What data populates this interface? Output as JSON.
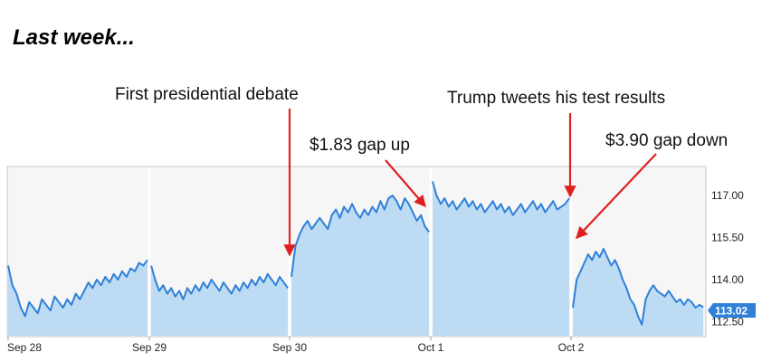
{
  "page": {
    "heading": "Last week..."
  },
  "annotations": {
    "debate": "First presidential debate",
    "gap_up": "$1.83 gap up",
    "tweet": "Trump tweets his test results",
    "gap_down": "$3.90 gap down"
  },
  "chart_data": {
    "type": "area",
    "y_ticks": [
      "117.00",
      "115.50",
      "114.00",
      "112.50"
    ],
    "ylim": [
      112.0,
      118.0
    ],
    "x_ticks": [
      "Sep 28",
      "Sep 29",
      "Sep 30",
      "Oct 1",
      "Oct 2"
    ],
    "last_price": "113.02",
    "grid": false,
    "colors": {
      "line": "#2f80d9",
      "fill": "#bddbf3",
      "badge": "#2f80d9",
      "arrow": "#e02020",
      "separator": "#ffffff"
    },
    "sessions": [
      {
        "label": "Sep 28",
        "values": [
          114.5,
          113.8,
          113.5,
          113.0,
          112.7,
          113.2,
          113.0,
          112.8,
          113.3,
          113.1,
          112.9,
          113.4,
          113.2,
          113.0,
          113.3,
          113.1,
          113.5,
          113.3,
          113.6,
          113.9,
          113.7,
          114.0,
          113.8,
          114.1,
          113.9,
          114.2,
          114.0,
          114.3,
          114.1,
          114.4,
          114.3,
          114.6,
          114.5,
          114.7
        ]
      },
      {
        "label": "Sep 29",
        "values": [
          114.5,
          114.0,
          113.6,
          113.8,
          113.5,
          113.7,
          113.4,
          113.6,
          113.3,
          113.7,
          113.5,
          113.8,
          113.6,
          113.9,
          113.7,
          114.0,
          113.8,
          113.6,
          113.9,
          113.7,
          113.5,
          113.8,
          113.6,
          113.9,
          113.7,
          114.0,
          113.8,
          114.1,
          113.9,
          114.2,
          114.0,
          113.8,
          114.1,
          113.9,
          113.7
        ]
      },
      {
        "label": "Sep 30",
        "values": [
          114.1,
          115.2,
          115.6,
          115.9,
          116.1,
          115.8,
          116.0,
          116.2,
          116.0,
          115.8,
          116.3,
          116.5,
          116.2,
          116.6,
          116.4,
          116.7,
          116.4,
          116.2,
          116.5,
          116.3,
          116.6,
          116.4,
          116.8,
          116.5,
          116.9,
          117.0,
          116.8,
          116.5,
          116.9,
          116.7,
          116.4,
          116.1,
          116.3,
          115.9,
          115.7
        ]
      },
      {
        "label": "Oct 1",
        "values": [
          117.5,
          117.0,
          116.7,
          116.9,
          116.6,
          116.8,
          116.5,
          116.7,
          116.9,
          116.6,
          116.8,
          116.5,
          116.7,
          116.4,
          116.6,
          116.8,
          116.5,
          116.7,
          116.4,
          116.6,
          116.3,
          116.5,
          116.7,
          116.4,
          116.6,
          116.8,
          116.5,
          116.7,
          116.4,
          116.6,
          116.8,
          116.5,
          116.6,
          116.7,
          116.9
        ]
      },
      {
        "label": "Oct 2",
        "values": [
          113.0,
          114.0,
          114.3,
          114.6,
          114.9,
          114.7,
          115.0,
          114.8,
          115.1,
          114.8,
          114.5,
          114.7,
          114.4,
          114.0,
          113.7,
          113.3,
          113.1,
          112.7,
          112.4,
          113.3,
          113.6,
          113.8,
          113.6,
          113.5,
          113.4,
          113.6,
          113.4,
          113.2,
          113.3,
          113.1,
          113.3,
          113.2,
          113.0,
          113.1,
          113.02
        ]
      }
    ]
  }
}
